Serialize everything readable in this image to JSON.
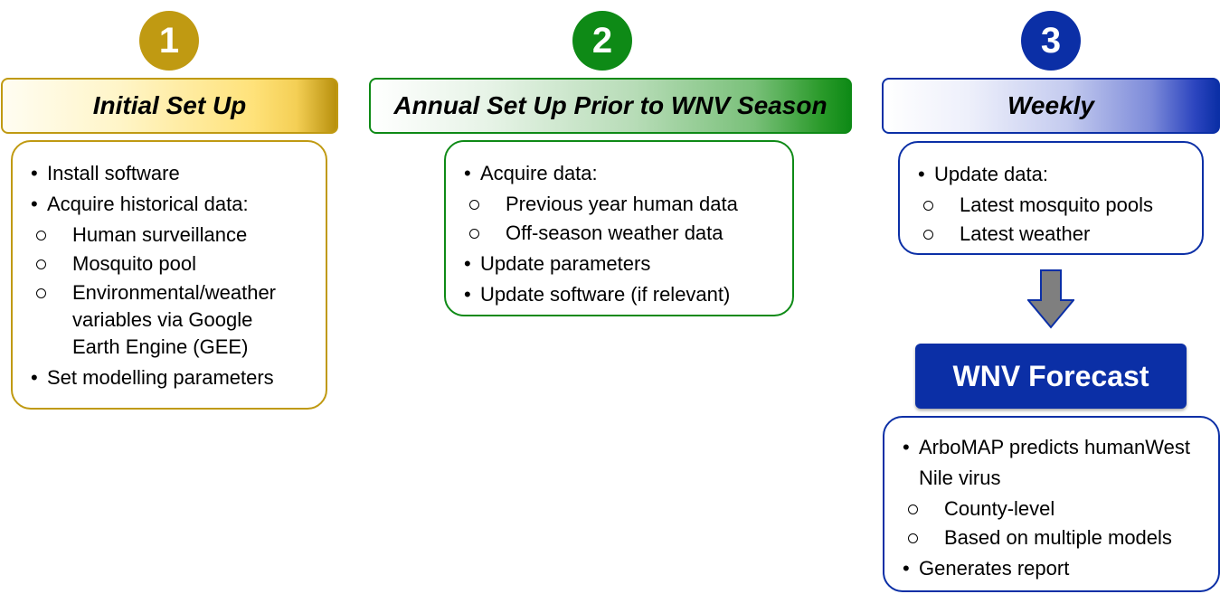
{
  "colors": {
    "step1": "#c09a12",
    "step2": "#0e8a16",
    "step3": "#0b2fa6"
  },
  "step1": {
    "number": "1",
    "title": "Initial Set Up",
    "items": [
      {
        "level": 1,
        "text": "Install software"
      },
      {
        "level": 1,
        "text": "Acquire historical data:"
      },
      {
        "level": 2,
        "text": "Human surveillance"
      },
      {
        "level": 2,
        "text": "Mosquito pool"
      },
      {
        "level": 2,
        "lines": [
          "Environmental/weather",
          "variables via Google",
          "Earth Engine (GEE)"
        ]
      },
      {
        "level": 1,
        "text": "Set modelling parameters"
      }
    ]
  },
  "step2": {
    "number": "2",
    "title": "Annual Set Up Prior to WNV Season",
    "items": [
      {
        "level": 1,
        "text": "Acquire data:"
      },
      {
        "level": 2,
        "text": "Previous year human data"
      },
      {
        "level": 2,
        "text": "Off-season weather data"
      },
      {
        "level": 1,
        "text": "Update parameters"
      },
      {
        "level": 1,
        "text": "Update software (if relevant)"
      }
    ]
  },
  "step3": {
    "number": "3",
    "title": "Weekly",
    "items": [
      {
        "level": 1,
        "text": "Update data:"
      },
      {
        "level": 2,
        "text": "Latest mosquito pools"
      },
      {
        "level": 2,
        "text": "Latest weather"
      }
    ]
  },
  "forecast": {
    "title": "WNV Forecast",
    "items": [
      {
        "level": 1,
        "lines": [
          "ArboMAP predicts human",
          "West Nile virus"
        ]
      },
      {
        "level": 2,
        "text": "County-level"
      },
      {
        "level": 2,
        "text": "Based on multiple models"
      },
      {
        "level": 1,
        "text": "Generates report"
      }
    ]
  }
}
